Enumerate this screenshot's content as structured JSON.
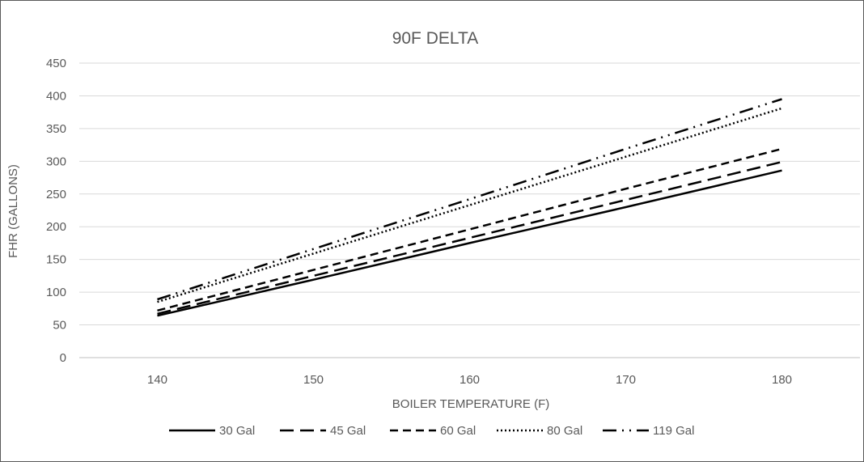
{
  "chart_data": {
    "type": "line",
    "title": "90F DELTA",
    "xlabel": "BOILER TEMPERATURE (F)",
    "ylabel": "FHR (GALLONS)",
    "x": [
      140,
      150,
      160,
      170,
      180
    ],
    "xticks": [
      "140",
      "150",
      "160",
      "170",
      "180"
    ],
    "xlim": [
      135,
      185
    ],
    "ylim": [
      0,
      450
    ],
    "yticks": [
      "0",
      "50",
      "100",
      "150",
      "200",
      "250",
      "300",
      "350",
      "400",
      "450"
    ],
    "grid": "horizontal",
    "legend_position": "bottom",
    "series": [
      {
        "name": "30 Gal",
        "dash": "solid",
        "values": [
          64,
          119,
          175,
          230,
          286
        ]
      },
      {
        "name": "45 Gal",
        "dash": "long-dash",
        "values": [
          67,
          125,
          183,
          241,
          299
        ]
      },
      {
        "name": "60 Gal",
        "dash": "dash",
        "values": [
          72,
          134,
          196,
          258,
          319
        ]
      },
      {
        "name": "80 Gal",
        "dash": "dot",
        "values": [
          85,
          159,
          233,
          307,
          381
        ]
      },
      {
        "name": "119 Gal",
        "dash": "long-dash-dot-dot",
        "values": [
          89,
          166,
          242,
          319,
          395
        ]
      }
    ],
    "colors": {
      "lines": "#000000",
      "text": "#595959",
      "grid": "#d9d9d9",
      "axis": "#bfbfbf",
      "border": "#595959"
    }
  }
}
